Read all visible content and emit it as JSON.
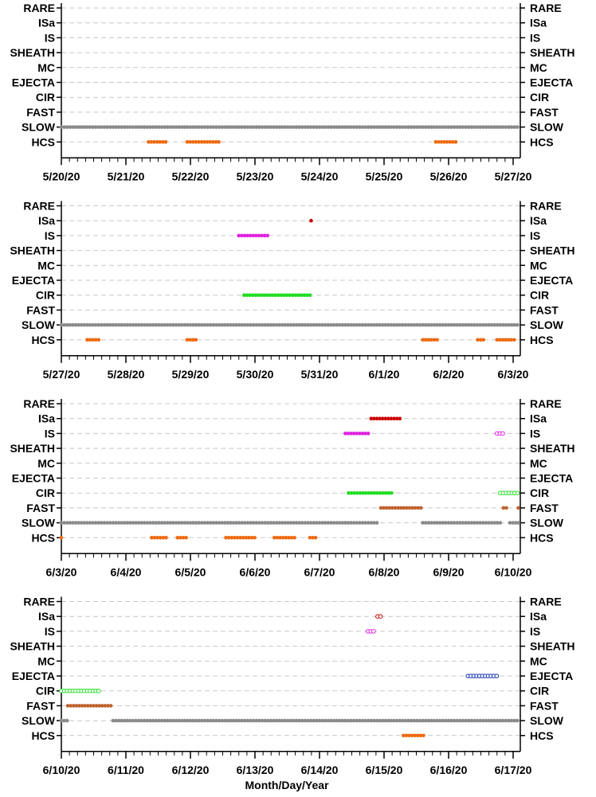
{
  "figure": {
    "xlabel": "Month/Day/Year"
  },
  "colors": {
    "RARE": "#000000",
    "ISa": "#cc0000",
    "IS": "#e020e0",
    "SHEATH": "#000000",
    "MC": "#000000",
    "EJECTA": "#1030b0",
    "CIR": "#22dd22",
    "FAST": "#c0622f",
    "SLOW": "#8a8a8a",
    "HCS": "#ee6a10"
  },
  "chart_data": [
    {
      "type": "scatter",
      "categories": [
        "RARE",
        "ISa",
        "IS",
        "SHEATH",
        "MC",
        "EJECTA",
        "CIR",
        "FAST",
        "SLOW",
        "HCS"
      ],
      "x_start": "5/20/20",
      "tick_labels": [
        "5/20/20",
        "5/21/20",
        "5/22/20",
        "5/23/20",
        "5/24/20",
        "5/25/20",
        "5/26/20",
        "5/27/20"
      ],
      "xlim_days": [
        0,
        7.1
      ],
      "grid": true,
      "series": [
        {
          "category": "SLOW",
          "style": "filled",
          "intervals": [
            [
              0,
              7.1
            ]
          ]
        },
        {
          "category": "HCS",
          "style": "filled",
          "intervals": [
            [
              1.35,
              1.65
            ],
            [
              1.95,
              2.45
            ],
            [
              5.8,
              6.15
            ]
          ]
        }
      ]
    },
    {
      "type": "scatter",
      "categories": [
        "RARE",
        "ISa",
        "IS",
        "SHEATH",
        "MC",
        "EJECTA",
        "CIR",
        "FAST",
        "SLOW",
        "HCS"
      ],
      "x_start": "5/27/20",
      "tick_labels": [
        "5/27/20",
        "5/28/20",
        "5/29/20",
        "5/30/20",
        "5/31/20",
        "6/1/20",
        "6/2/20",
        "6/3/20"
      ],
      "xlim_days": [
        0,
        7.1
      ],
      "grid": true,
      "series": [
        {
          "category": "ISa",
          "style": "filled",
          "intervals": [
            [
              3.87,
              3.87
            ]
          ]
        },
        {
          "category": "IS",
          "style": "filled",
          "intervals": [
            [
              2.75,
              3.2
            ]
          ]
        },
        {
          "category": "CIR",
          "style": "filled",
          "intervals": [
            [
              2.83,
              3.87
            ]
          ]
        },
        {
          "category": "SLOW",
          "style": "filled",
          "intervals": [
            [
              0,
              7.1
            ]
          ]
        },
        {
          "category": "HCS",
          "style": "filled",
          "intervals": [
            [
              0.4,
              0.6
            ],
            [
              1.95,
              2.1
            ],
            [
              5.6,
              5.85
            ],
            [
              6.45,
              6.55
            ],
            [
              6.75,
              7.05
            ]
          ]
        }
      ]
    },
    {
      "type": "scatter",
      "categories": [
        "RARE",
        "ISa",
        "IS",
        "SHEATH",
        "MC",
        "EJECTA",
        "CIR",
        "FAST",
        "SLOW",
        "HCS"
      ],
      "x_start": "6/3/20",
      "tick_labels": [
        "6/3/20",
        "6/4/20",
        "6/5/20",
        "6/6/20",
        "6/7/20",
        "6/8/20",
        "6/9/20",
        "6/10/20"
      ],
      "xlim_days": [
        0,
        7.1
      ],
      "grid": true,
      "series": [
        {
          "category": "ISa",
          "style": "filled",
          "intervals": [
            [
              4.8,
              5.25
            ]
          ]
        },
        {
          "category": "IS",
          "style": "filled",
          "intervals": [
            [
              4.4,
              4.8
            ]
          ]
        },
        {
          "category": "IS",
          "style": "open",
          "intervals": [
            [
              6.75,
              6.88
            ]
          ]
        },
        {
          "category": "CIR",
          "style": "filled",
          "intervals": [
            [
              4.45,
              5.15
            ]
          ]
        },
        {
          "category": "CIR",
          "style": "open",
          "intervals": [
            [
              6.8,
              7.1
            ]
          ]
        },
        {
          "category": "FAST",
          "style": "filled",
          "intervals": [
            [
              4.95,
              5.6
            ],
            [
              6.85,
              6.92
            ],
            [
              7.08,
              7.1
            ]
          ]
        },
        {
          "category": "SLOW",
          "style": "filled",
          "intervals": [
            [
              0,
              4.9
            ],
            [
              5.6,
              6.8
            ],
            [
              6.95,
              7.1
            ]
          ]
        },
        {
          "category": "HCS",
          "style": "filled",
          "intervals": [
            [
              0,
              0.02
            ],
            [
              1.4,
              1.65
            ],
            [
              1.8,
              1.95
            ],
            [
              2.55,
              3.0
            ],
            [
              3.3,
              3.65
            ],
            [
              3.85,
              3.95
            ]
          ]
        }
      ]
    },
    {
      "type": "scatter",
      "categories": [
        "RARE",
        "ISa",
        "IS",
        "SHEATH",
        "MC",
        "EJECTA",
        "CIR",
        "FAST",
        "SLOW",
        "HCS"
      ],
      "x_start": "6/10/20",
      "tick_labels": [
        "6/10/20",
        "6/11/20",
        "6/12/20",
        "6/13/20",
        "6/14/20",
        "6/15/20",
        "6/16/20",
        "6/17/20"
      ],
      "xlim_days": [
        0,
        7.1
      ],
      "grid": true,
      "series": [
        {
          "category": "ISa",
          "style": "open",
          "intervals": [
            [
              4.9,
              4.98
            ]
          ]
        },
        {
          "category": "IS",
          "style": "open",
          "intervals": [
            [
              4.75,
              4.85
            ]
          ]
        },
        {
          "category": "EJECTA",
          "style": "open",
          "intervals": [
            [
              6.3,
              6.75
            ]
          ]
        },
        {
          "category": "CIR",
          "style": "open",
          "intervals": [
            [
              0,
              0.6
            ]
          ]
        },
        {
          "category": "FAST",
          "style": "filled",
          "intervals": [
            [
              0.1,
              0.8
            ]
          ]
        },
        {
          "category": "SLOW",
          "style": "filled",
          "intervals": [
            [
              0,
              0.1
            ],
            [
              0.8,
              7.1
            ]
          ]
        },
        {
          "category": "HCS",
          "style": "filled",
          "intervals": [
            [
              5.3,
              5.65
            ]
          ]
        }
      ]
    }
  ]
}
